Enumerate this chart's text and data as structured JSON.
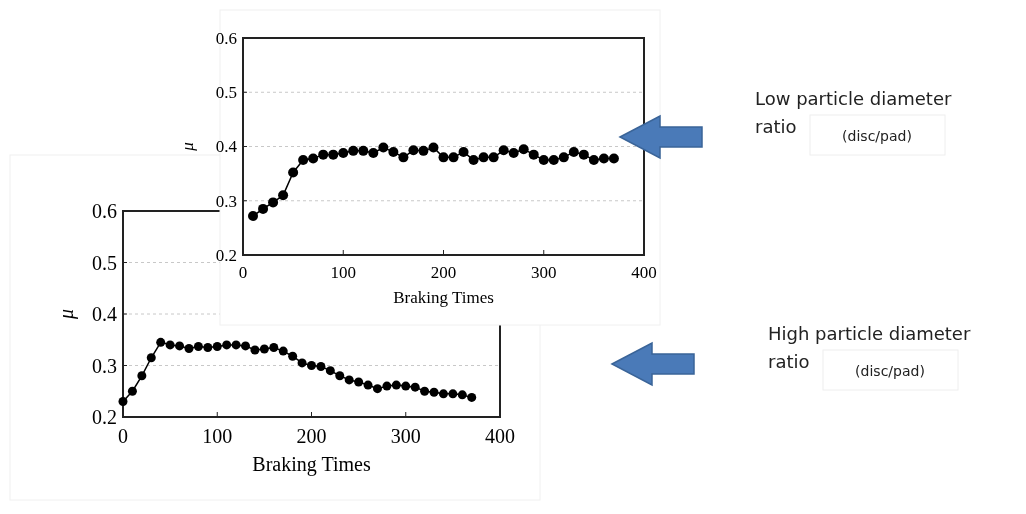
{
  "chart_data": [
    {
      "type": "line",
      "xlabel": "Braking Times",
      "ylabel": "μ",
      "color": "#000000",
      "marker": "circle",
      "grid": "y",
      "xlim": [
        0,
        400
      ],
      "ylim": [
        0.2,
        0.6
      ],
      "xticks": [
        0,
        100,
        200,
        300,
        400
      ],
      "yticks": [
        0.2,
        0.3,
        0.4,
        0.5,
        0.6
      ],
      "annotations": [
        "Low particle diameter ratio",
        "(disc/pad)"
      ],
      "x": [
        10,
        20,
        30,
        40,
        50,
        60,
        70,
        80,
        90,
        100,
        110,
        120,
        130,
        140,
        150,
        160,
        170,
        180,
        190,
        200,
        210,
        220,
        230,
        240,
        250,
        260,
        270,
        280,
        290,
        300,
        310,
        320,
        330,
        340,
        350,
        360,
        370
      ],
      "values": [
        0.272,
        0.285,
        0.297,
        0.31,
        0.352,
        0.375,
        0.378,
        0.385,
        0.385,
        0.388,
        0.392,
        0.392,
        0.388,
        0.398,
        0.39,
        0.38,
        0.393,
        0.392,
        0.398,
        0.38,
        0.38,
        0.39,
        0.375,
        0.38,
        0.38,
        0.393,
        0.388,
        0.395,
        0.385,
        0.375,
        0.375,
        0.38,
        0.39,
        0.385,
        0.375,
        0.378,
        0.378
      ]
    },
    {
      "type": "line",
      "xlabel": "Braking Times",
      "ylabel": "μ",
      "color": "#000000",
      "marker": "circle",
      "grid": "y",
      "xlim": [
        0,
        400
      ],
      "ylim": [
        0.2,
        0.6
      ],
      "xticks": [
        0,
        100,
        200,
        300,
        400
      ],
      "yticks": [
        0.2,
        0.3,
        0.4,
        0.5,
        0.6
      ],
      "annotations": [
        "High particle diameter ratio",
        "(disc/pad)"
      ],
      "x": [
        0,
        10,
        20,
        30,
        40,
        50,
        60,
        70,
        80,
        90,
        100,
        110,
        120,
        130,
        140,
        150,
        160,
        170,
        180,
        190,
        200,
        210,
        220,
        230,
        240,
        250,
        260,
        270,
        280,
        290,
        300,
        310,
        320,
        330,
        340,
        350,
        360,
        370
      ],
      "values": [
        0.23,
        0.25,
        0.28,
        0.315,
        0.345,
        0.34,
        0.338,
        0.333,
        0.337,
        0.335,
        0.337,
        0.34,
        0.34,
        0.338,
        0.33,
        0.332,
        0.335,
        0.328,
        0.318,
        0.305,
        0.3,
        0.298,
        0.29,
        0.28,
        0.272,
        0.268,
        0.262,
        0.255,
        0.26,
        0.262,
        0.26,
        0.258,
        0.25,
        0.248,
        0.245,
        0.245,
        0.243,
        0.238
      ]
    }
  ]
}
